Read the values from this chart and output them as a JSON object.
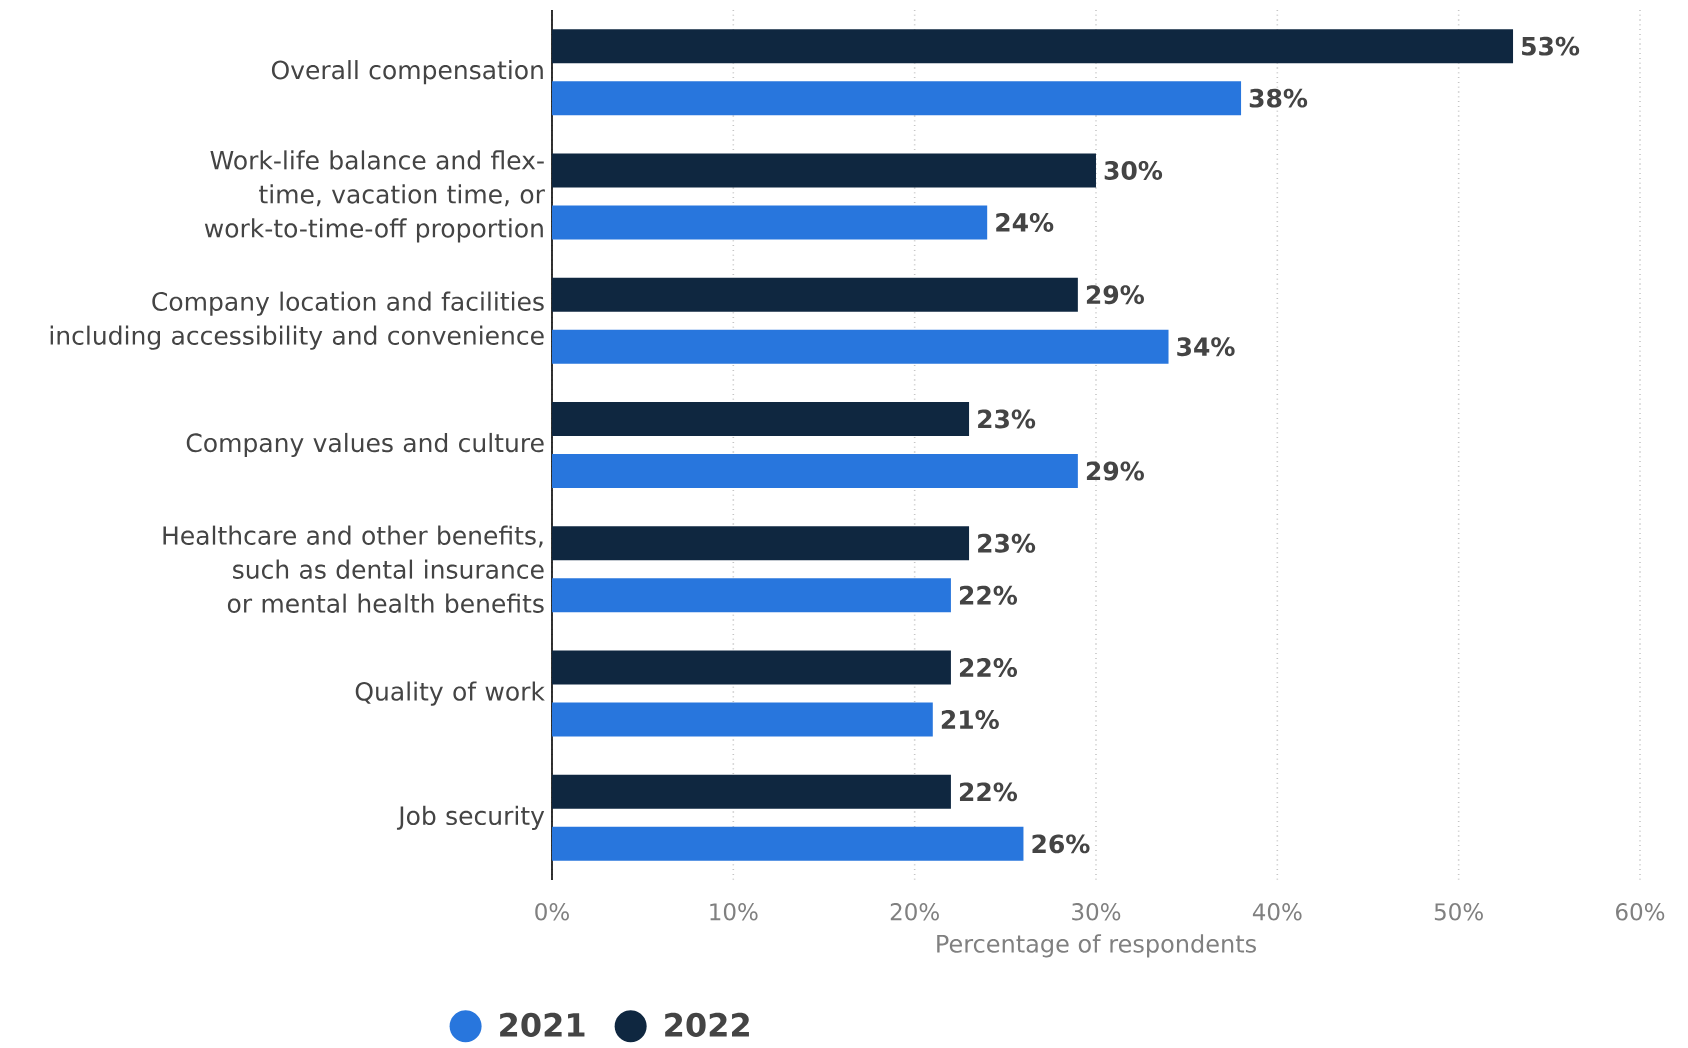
{
  "chart_data": {
    "type": "bar",
    "orientation": "horizontal",
    "categories": [
      "Overall compensation",
      "Work-life balance and flex-time, vacation time, or work-to-time-off proportion",
      "Company location and facilities including accessibility and convenience",
      "Company values and culture",
      "Healthcare and other benefits, such as dental insurance or mental health benefits",
      "Quality of work",
      "Job security"
    ],
    "series": [
      {
        "name": "2021",
        "color": "#2876dd",
        "values": [
          38,
          24,
          34,
          29,
          22,
          21,
          26
        ],
        "value_labels": [
          "38%",
          "24%",
          "34%",
          "29%",
          "22%",
          "21%",
          "26%"
        ]
      },
      {
        "name": "2022",
        "color": "#0f2740",
        "values": [
          53,
          30,
          29,
          23,
          23,
          22,
          22
        ],
        "value_labels": [
          "53%",
          "30%",
          "29%",
          "23%",
          "23%",
          "22%",
          "22%"
        ]
      }
    ],
    "xlabel": "Percentage of respondents",
    "xlim": [
      0,
      60
    ],
    "xticks": [
      {
        "value": 0,
        "label": "0%"
      },
      {
        "value": 10,
        "label": "10%"
      },
      {
        "value": 20,
        "label": "20%"
      },
      {
        "value": 30,
        "label": "30%"
      },
      {
        "value": 40,
        "label": "40%"
      },
      {
        "value": 50,
        "label": "50%"
      },
      {
        "value": 60,
        "label": "60%"
      }
    ],
    "grid": "x",
    "legend": "bottom"
  }
}
